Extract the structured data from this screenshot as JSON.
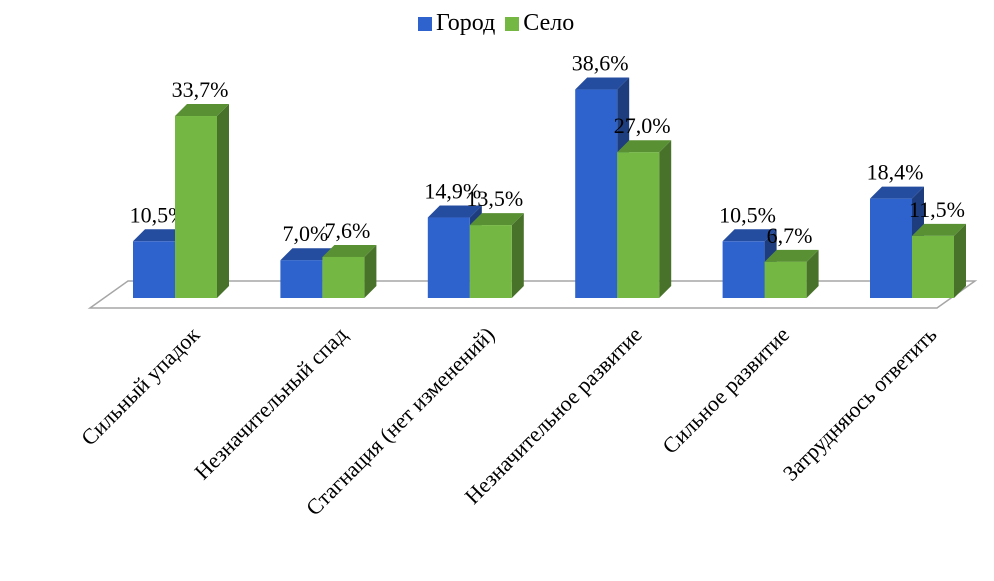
{
  "chart_data": {
    "type": "bar",
    "title": "",
    "xlabel": "",
    "ylabel": "",
    "ylim": [
      0,
      40
    ],
    "grid": false,
    "legend_position": "top",
    "categories": [
      "Сильный упадок",
      "Незначительный спад",
      "Стагнация (нет изменений)",
      "Незначительное развитие",
      "Сильное развитие",
      "Затрудняюсь ответить"
    ],
    "series": [
      {
        "name": "Город",
        "values": [
          10.5,
          7.0,
          14.9,
          38.6,
          10.5,
          18.4
        ],
        "labels": [
          "10,5%",
          "7,0%",
          "14,9%",
          "38,6%",
          "10,5%",
          "18,4%"
        ],
        "color": "#2e62cc"
      },
      {
        "name": "Село",
        "values": [
          33.7,
          7.6,
          13.5,
          27.0,
          6.7,
          11.5
        ],
        "labels": [
          "33,7%",
          "7,6%",
          "13,5%",
          "27,0%",
          "6,7%",
          "11,5%"
        ],
        "color": "#74b843"
      }
    ]
  }
}
